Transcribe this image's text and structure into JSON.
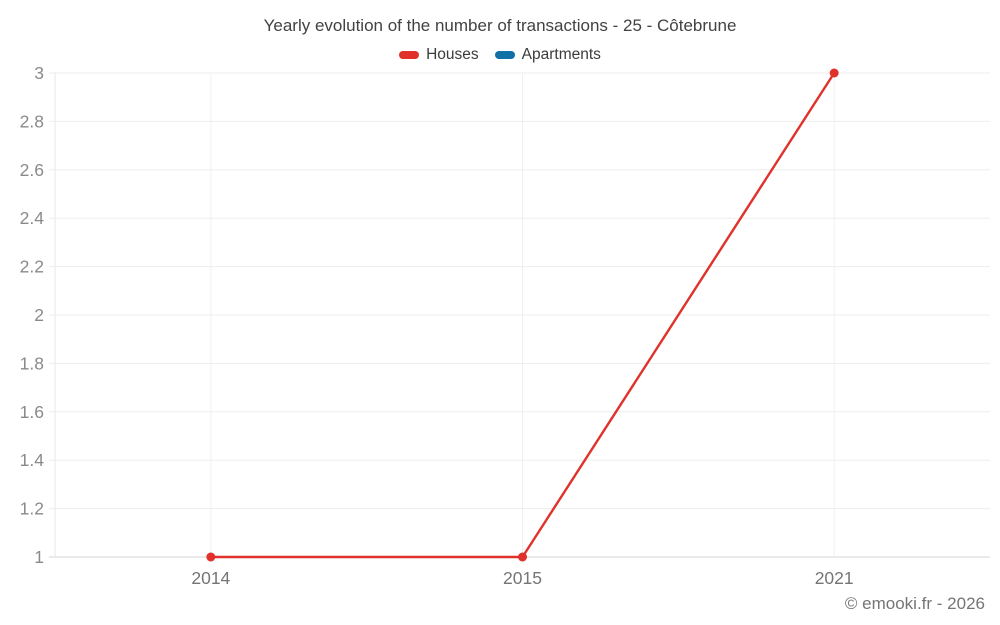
{
  "footer": "© emooki.fr - 2026",
  "chart_data": {
    "type": "line",
    "title": "Yearly evolution of the number of transactions - 25 - Côtebrune",
    "categories": [
      "2014",
      "2015",
      "2021"
    ],
    "series": [
      {
        "name": "Houses",
        "color": "#e0312a",
        "values": [
          1,
          1,
          3
        ]
      },
      {
        "name": "Apartments",
        "color": "#1170a5",
        "values": []
      }
    ],
    "ylim": [
      1,
      3
    ],
    "yticks": [
      "1",
      "1.2",
      "1.4",
      "1.6",
      "1.8",
      "2",
      "2.2",
      "2.4",
      "2.6",
      "2.8",
      "3"
    ],
    "xlabel": "",
    "ylabel": "",
    "grid": true,
    "legend_position": "top"
  }
}
